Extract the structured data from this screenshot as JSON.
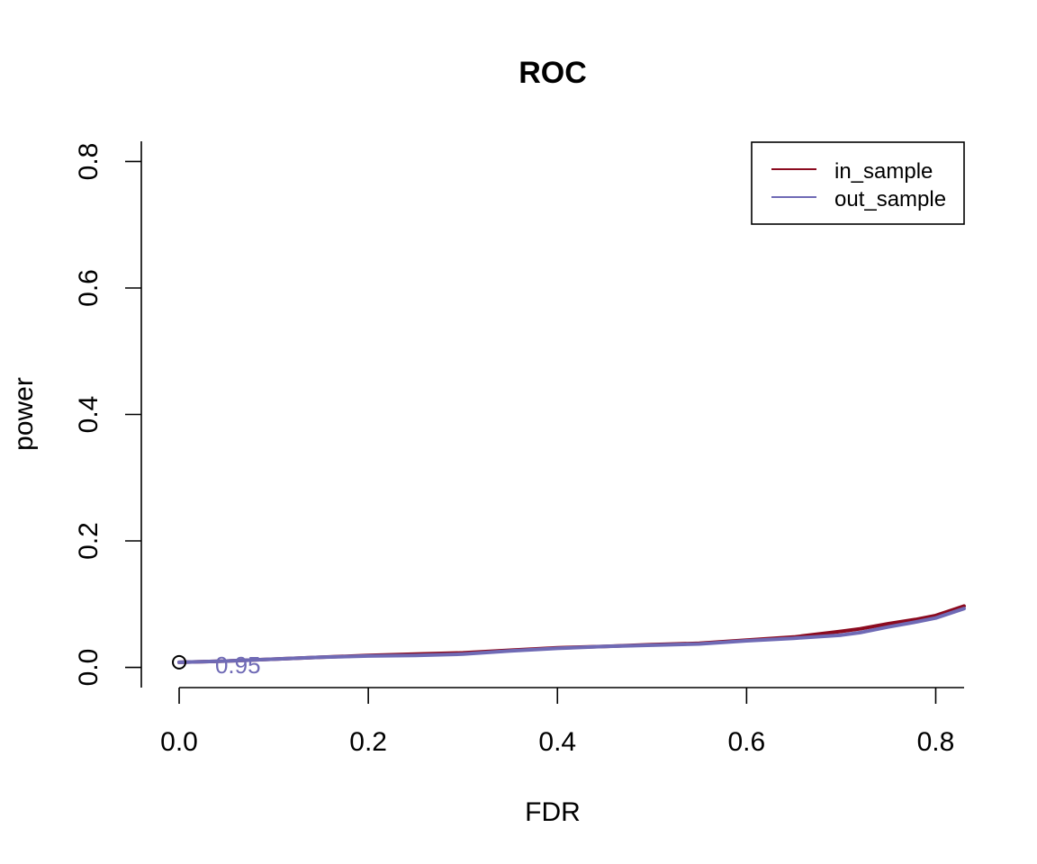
{
  "chart_data": {
    "type": "line",
    "title": "ROC",
    "xlabel": "FDR",
    "ylabel": "power",
    "xlim": [
      -0.04,
      0.83
    ],
    "ylim": [
      -0.032,
      0.832
    ],
    "xticks": [
      0.0,
      0.2,
      0.4,
      0.6,
      0.8
    ],
    "xtick_labels": [
      "0.0",
      "0.2",
      "0.4",
      "0.6",
      "0.8"
    ],
    "yticks": [
      0.0,
      0.2,
      0.4,
      0.6,
      0.8
    ],
    "ytick_labels": [
      "0.0",
      "0.2",
      "0.4",
      "0.6",
      "0.8"
    ],
    "grid": false,
    "legend_position": "top-right",
    "series": [
      {
        "name": "in_sample",
        "color": "#8B0A1F",
        "x": [
          0.0,
          0.05,
          0.1,
          0.15,
          0.2,
          0.25,
          0.3,
          0.35,
          0.4,
          0.45,
          0.5,
          0.55,
          0.6,
          0.65,
          0.7,
          0.72,
          0.75,
          0.78,
          0.8,
          0.83
        ],
        "y": [
          0.008,
          0.01,
          0.013,
          0.016,
          0.019,
          0.021,
          0.023,
          0.027,
          0.031,
          0.033,
          0.036,
          0.038,
          0.043,
          0.048,
          0.057,
          0.061,
          0.069,
          0.076,
          0.082,
          0.097
        ]
      },
      {
        "name": "out_sample",
        "color": "#6F6AB5",
        "x": [
          0.0,
          0.05,
          0.1,
          0.15,
          0.2,
          0.25,
          0.3,
          0.35,
          0.4,
          0.45,
          0.5,
          0.55,
          0.6,
          0.65,
          0.7,
          0.72,
          0.75,
          0.78,
          0.8,
          0.83
        ],
        "y": [
          0.008,
          0.01,
          0.013,
          0.016,
          0.018,
          0.019,
          0.021,
          0.026,
          0.03,
          0.033,
          0.035,
          0.037,
          0.042,
          0.046,
          0.051,
          0.055,
          0.064,
          0.072,
          0.078,
          0.093
        ]
      }
    ],
    "annotations": [
      {
        "text": "0.95",
        "x": 0.038,
        "y": 0.0048,
        "color": "#6F6AB5"
      }
    ],
    "markers": [
      {
        "x": 0.0,
        "y": 0.008,
        "shape": "open-circle",
        "color": "#000000"
      }
    ]
  }
}
